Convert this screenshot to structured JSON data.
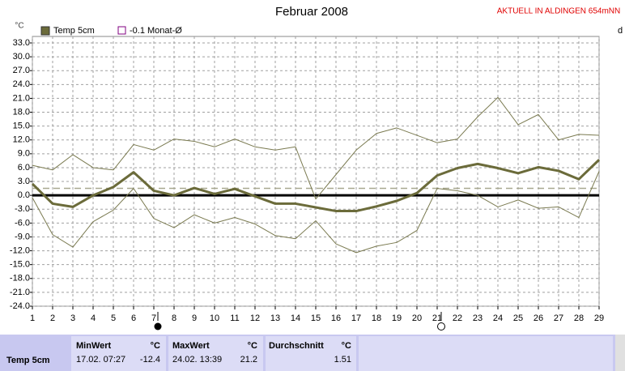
{
  "chart_data": {
    "type": "line",
    "title": "Februar 2008",
    "subtitle": "AKTUELL IN ALDINGEN 654mNN",
    "y_label": "°C",
    "x_label": "d",
    "x": [
      1,
      2,
      3,
      4,
      5,
      6,
      7,
      8,
      9,
      10,
      11,
      12,
      13,
      14,
      15,
      16,
      17,
      18,
      19,
      20,
      21,
      22,
      23,
      24,
      25,
      26,
      27,
      28,
      29
    ],
    "xlim": [
      1,
      29
    ],
    "ylim": [
      -24,
      33
    ],
    "yticks": [
      {
        "value": 33,
        "label": "33.0"
      },
      {
        "value": 30,
        "label": "30.0"
      },
      {
        "value": 27,
        "label": "27.0"
      },
      {
        "value": 24,
        "label": "24.0"
      },
      {
        "value": 21,
        "label": "21.0"
      },
      {
        "value": 18,
        "label": "18.0"
      },
      {
        "value": 15,
        "label": "15.0"
      },
      {
        "value": 12,
        "label": "12.0"
      },
      {
        "value": 9,
        "label": "9.0"
      },
      {
        "value": 6,
        "label": "6.0"
      },
      {
        "value": 3,
        "label": "3.0"
      },
      {
        "value": 0,
        "label": "0.0"
      },
      {
        "value": -3,
        "label": "-3.0"
      },
      {
        "value": -6,
        "label": "-6.0"
      },
      {
        "value": -9,
        "label": "-9.0"
      },
      {
        "value": -12,
        "label": "-12.0"
      },
      {
        "value": -15,
        "label": "-15.0"
      },
      {
        "value": -18,
        "label": "-18.0"
      },
      {
        "value": -21,
        "label": "-21.0"
      },
      {
        "value": -24,
        "label": "-24.0"
      }
    ],
    "grid": true,
    "series": [
      {
        "name": "Temp 5cm",
        "color": "#6b6b3a",
        "width": 3,
        "values": [
          2.5,
          -1.8,
          -2.5,
          0.0,
          1.8,
          5.0,
          1.0,
          0.0,
          1.6,
          0.3,
          1.4,
          -0.2,
          -1.8,
          -1.8,
          -2.6,
          -3.4,
          -3.4,
          -2.4,
          -1.2,
          0.5,
          4.3,
          5.9,
          6.8,
          5.9,
          4.8,
          6.1,
          5.3,
          3.5,
          7.7
        ]
      },
      {
        "color": "#7a7a50",
        "width": 1,
        "values": [
          6.5,
          5.5,
          8.8,
          6.0,
          5.5,
          11.0,
          9.8,
          12.2,
          11.7,
          10.5,
          12.2,
          10.5,
          9.8,
          10.5,
          -0.8,
          4.5,
          9.8,
          13.4,
          14.6,
          13.0,
          11.4,
          12.2,
          17.0,
          21.2,
          15.3,
          17.5,
          12.0,
          13.2,
          13.0
        ]
      },
      {
        "color": "#7a7a50",
        "width": 1,
        "values": [
          -0.5,
          -8.5,
          -11.2,
          -5.7,
          -3.2,
          1.5,
          -5.0,
          -7.0,
          -4.2,
          -6.0,
          -4.8,
          -6.2,
          -8.7,
          -9.4,
          -5.5,
          -10.5,
          -12.4,
          -11.0,
          -10.2,
          -7.6,
          1.5,
          1.0,
          0.0,
          -2.5,
          -1.0,
          -2.8,
          -2.5,
          -4.8,
          5.2
        ]
      }
    ],
    "reference_line": {
      "name": "-0.1 Monat-Ø",
      "value": 1.51,
      "color": "#a8a890"
    }
  },
  "stats": {
    "label": "Temp 5cm",
    "unit": "°C",
    "columns": [
      {
        "title": "MinWert",
        "date": "17.02.  07:27",
        "value": -12.4
      },
      {
        "title": "MaxWert",
        "date": "24.02.  13:39",
        "value": 21.2
      },
      {
        "title": "Durchschnitt",
        "value": 1.51
      }
    ]
  }
}
